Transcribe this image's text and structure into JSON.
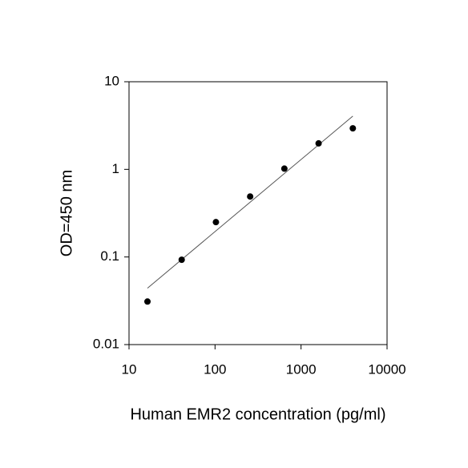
{
  "chart_data": {
    "type": "scatter",
    "x_label": "Human EMR2 concentration (pg/ml)",
    "y_label": "OD=450 nm",
    "xscale": "log",
    "yscale": "log",
    "xlim": [
      10,
      10000
    ],
    "ylim": [
      0.01,
      10
    ],
    "xticks": [
      10,
      100,
      1000,
      10000
    ],
    "yticks": [
      0.01,
      0.1,
      1,
      10
    ],
    "series": [
      {
        "color": "#000000",
        "x": [
          16.384,
          40.96,
          102.4,
          256,
          640,
          1600,
          4000
        ],
        "values": [
          0.031,
          0.093,
          0.25,
          0.49,
          1.02,
          1.98,
          2.94
        ]
      }
    ],
    "fit_line": {
      "color": "#555555",
      "x": [
        16.384,
        4000
      ],
      "values": [
        0.044,
        4.05
      ]
    }
  }
}
